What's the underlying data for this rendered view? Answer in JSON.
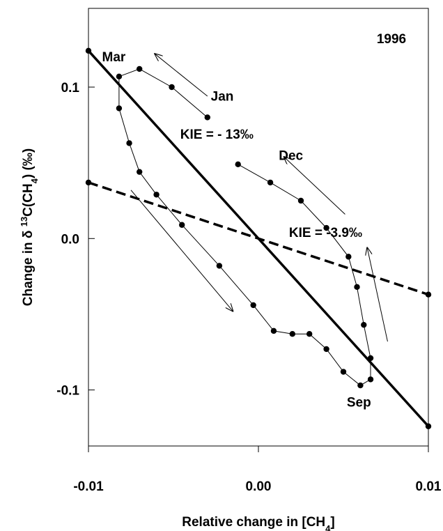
{
  "chart_data": {
    "type": "scatter",
    "title": "1996",
    "xlabel": "Relative change in [CH4]",
    "ylabel": "Change in δ 13C(CH4)  (‰)",
    "xlim": [
      -0.01,
      0.01
    ],
    "ylim": [
      -0.137,
      0.152
    ],
    "x_ticks": [
      {
        "value": -0.01,
        "label": "-0.01"
      },
      {
        "value": 0.0,
        "label": "0.00"
      },
      {
        "value": 0.01,
        "label": "0.01"
      }
    ],
    "y_ticks": [
      {
        "value": 0.1,
        "label": "0.1"
      },
      {
        "value": 0.0,
        "label": "0.0"
      },
      {
        "value": -0.1,
        "label": "-0.1"
      }
    ],
    "grid": false,
    "series": [
      {
        "type": "line-markers",
        "points": [
          {
            "x": -0.003,
            "y": 0.08
          },
          {
            "x": -0.0051,
            "y": 0.1
          },
          {
            "x": -0.007,
            "y": 0.112
          },
          {
            "x": -0.0082,
            "y": 0.107
          },
          {
            "x": -0.0082,
            "y": 0.086
          },
          {
            "x": -0.0076,
            "y": 0.063
          },
          {
            "x": -0.007,
            "y": 0.044
          },
          {
            "x": -0.006,
            "y": 0.029
          },
          {
            "x": -0.0045,
            "y": 0.009
          },
          {
            "x": -0.0023,
            "y": -0.018
          },
          {
            "x": -0.0003,
            "y": -0.044
          },
          {
            "x": 0.0009,
            "y": -0.061
          },
          {
            "x": 0.002,
            "y": -0.063
          },
          {
            "x": 0.003,
            "y": -0.063
          },
          {
            "x": 0.004,
            "y": -0.073
          },
          {
            "x": 0.005,
            "y": -0.088
          },
          {
            "x": 0.006,
            "y": -0.097
          },
          {
            "x": 0.0066,
            "y": -0.093
          },
          {
            "x": 0.0066,
            "y": -0.079
          },
          {
            "x": 0.0062,
            "y": -0.057
          },
          {
            "x": 0.0058,
            "y": -0.032
          },
          {
            "x": 0.0053,
            "y": -0.012
          },
          {
            "x": 0.004,
            "y": 0.007
          },
          {
            "x": 0.0025,
            "y": 0.025
          },
          {
            "x": 0.0007,
            "y": 0.037
          },
          {
            "x": -0.0012,
            "y": 0.049
          }
        ]
      },
      {
        "type": "line",
        "style": "solid",
        "label": "KIE = - 13‰",
        "points": [
          {
            "x": -0.01,
            "y": 0.124
          },
          {
            "x": 0.01,
            "y": -0.124
          }
        ]
      },
      {
        "type": "line",
        "style": "dashed",
        "label": "KIE = -3.9‰",
        "points": [
          {
            "x": -0.01,
            "y": 0.037
          },
          {
            "x": 0.01,
            "y": -0.037
          }
        ]
      }
    ],
    "annotations": [
      {
        "text": "Mar",
        "x": -0.0092,
        "y": 0.117
      },
      {
        "text": "Jan",
        "x": -0.0028,
        "y": 0.091
      },
      {
        "text": "Dec",
        "x": 0.0012,
        "y": 0.052
      },
      {
        "text": "Sep",
        "x": 0.0052,
        "y": -0.111
      },
      {
        "text": "KIE = - 13‰",
        "x": -0.0046,
        "y": 0.066
      },
      {
        "text": "KIE = -3.9‰",
        "x": 0.0018,
        "y": 0.001
      }
    ],
    "arrows": [
      {
        "from": {
          "x": -0.003,
          "y": 0.094
        },
        "to": {
          "x": -0.0061,
          "y": 0.122
        }
      },
      {
        "from": {
          "x": 0.0051,
          "y": 0.016
        },
        "to": {
          "x": 0.0015,
          "y": 0.054
        }
      },
      {
        "from": {
          "x": -0.0075,
          "y": 0.032
        },
        "to": {
          "x": -0.0015,
          "y": -0.048
        }
      },
      {
        "from": {
          "x": 0.0076,
          "y": -0.068
        },
        "to": {
          "x": 0.0064,
          "y": -0.006
        }
      }
    ]
  }
}
